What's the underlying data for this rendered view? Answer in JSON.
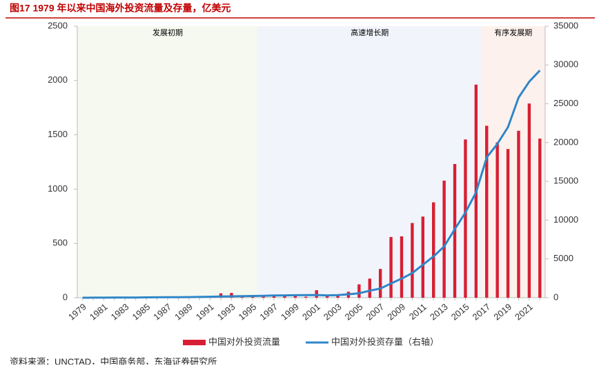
{
  "chart_data": {
    "type": "bar",
    "title": "图17  1979 年以来中国海外投资流量及存量，亿美元",
    "source": "资料来源：UNCTAD，中国商务部，东海证券研究所",
    "categories": [
      "1979",
      null,
      "1981",
      null,
      "1983",
      null,
      "1985",
      null,
      "1987",
      null,
      "1989",
      null,
      "1991",
      null,
      "1993",
      null,
      "1995",
      null,
      "1997",
      null,
      "1999",
      null,
      "2001",
      null,
      "2003",
      null,
      "2005",
      null,
      "2007",
      null,
      "2009",
      null,
      "2011",
      null,
      "2013",
      null,
      "2015",
      null,
      "2017",
      null,
      "2019",
      null,
      "2021",
      null
    ],
    "series": [
      {
        "name": "中国对外投资流量",
        "color": "#d71f34",
        "type": "bar",
        "values": [
          0,
          0,
          0,
          0.4,
          0.9,
          1.3,
          6.3,
          4.5,
          6.5,
          8.5,
          7.8,
          8.3,
          9.1,
          40,
          44,
          20,
          20,
          21,
          26,
          26,
          18,
          9,
          69,
          25,
          29,
          55,
          123,
          176,
          265,
          559,
          565,
          688,
          747,
          878,
          1078,
          1231,
          1457,
          1962,
          1583,
          1430,
          1369,
          1537,
          1788,
          1465
        ]
      },
      {
        "name": "中国对外投资存量（右轴）",
        "color": "#2e86c8",
        "type": "line",
        "axis": "y2",
        "values": [
          0,
          5,
          10,
          15,
          20,
          30,
          40,
          50,
          60,
          70,
          80,
          100,
          120,
          150,
          180,
          200,
          220,
          250,
          280,
          300,
          320,
          330,
          350,
          299,
          332,
          448,
          572,
          906,
          1179,
          1840,
          2458,
          3172,
          4248,
          5319,
          6605,
          8826,
          10979,
          13574,
          18090,
          19823,
          21989,
          25807,
          27852,
          29300
        ]
      }
    ],
    "phases": [
      {
        "label": "发展初期",
        "start": 1979,
        "end": 1995,
        "color": "#f5f9ef"
      },
      {
        "label": "高速增长期",
        "start": 1996,
        "end": 2016,
        "color": "#f1f4fb"
      },
      {
        "label": "有序发展期",
        "start": 2017,
        "end": 2022,
        "color": "#fcf1ed"
      }
    ],
    "ylim": [
      0,
      2500
    ],
    "yticks": [
      0,
      500,
      1000,
      1500,
      2000,
      2500
    ],
    "y2lim": [
      0,
      35000
    ],
    "y2ticks": [
      0,
      5000,
      10000,
      15000,
      20000,
      25000,
      30000,
      35000
    ]
  }
}
